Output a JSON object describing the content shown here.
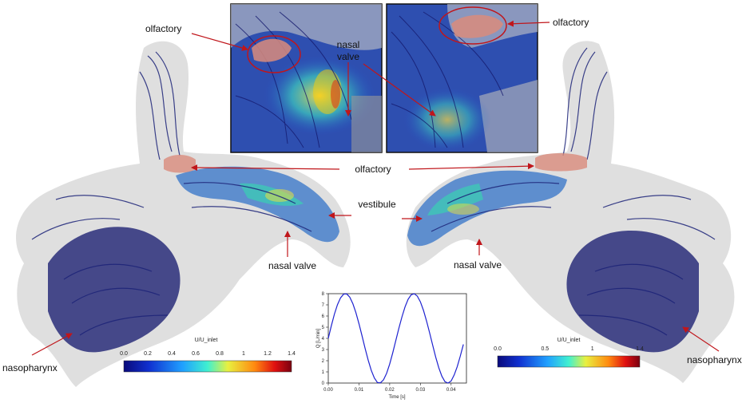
{
  "labels": {
    "olfactory_top_left": "olfactory",
    "olfactory_top_right": "olfactory",
    "olfactory_center": "olfactory",
    "nasal_valve_top_line1": "nasal",
    "nasal_valve_top_line2": "valve",
    "vestibule": "vestibule",
    "nasal_valve_left": "nasal valve",
    "nasal_valve_right": "nasal valve",
    "nasopharynx_left": "nasopharynx",
    "nasopharynx_right": "nasopharynx"
  },
  "colorbars": [
    {
      "title": "U/U_inlet",
      "ticks": [
        "0.0",
        "0.2",
        "0.4",
        "0.6",
        "0.8",
        "1",
        "1.2",
        "1.4"
      ]
    },
    {
      "title": "U/U_inlet",
      "ticks": [
        "0.0",
        "0.5",
        "1",
        "1.4"
      ]
    }
  ],
  "colors": {
    "arrow": "#c0161b",
    "streamline_low": "#1a1f8a",
    "streamline_high": "#ffd200",
    "olfactory_patch": "#d98b7c",
    "tissue": "#b8b8b8"
  },
  "chart_data": {
    "type": "line",
    "title": "",
    "xlabel": "Time [s]",
    "ylabel": "Q [L/min]",
    "xlim": [
      0.0,
      0.045
    ],
    "ylim": [
      0,
      8
    ],
    "xticks": [
      "0.00",
      "0.01",
      "0.02",
      "0.03",
      "0.04"
    ],
    "yticks": [
      "0",
      "1",
      "2",
      "3",
      "4",
      "5",
      "6",
      "7",
      "8"
    ],
    "series": [
      {
        "x": [
          0.0,
          0.001,
          0.002,
          0.003,
          0.004,
          0.005,
          0.006,
          0.007,
          0.008,
          0.009,
          0.01,
          0.011,
          0.012,
          0.013,
          0.014,
          0.015,
          0.016,
          0.017,
          0.018,
          0.019,
          0.02,
          0.021,
          0.022,
          0.023,
          0.024,
          0.025,
          0.026,
          0.027,
          0.028,
          0.029,
          0.03,
          0.031,
          0.032,
          0.033,
          0.034,
          0.035,
          0.036,
          0.037,
          0.038,
          0.039,
          0.04,
          0.041,
          0.042,
          0.043,
          0.044
        ],
        "y": [
          4.0,
          5.13,
          6.17,
          7.02,
          7.63,
          7.96,
          7.98,
          7.69,
          7.11,
          6.3,
          5.31,
          4.22,
          3.1,
          2.05,
          1.14,
          0.46,
          0.05,
          0.02,
          0.29,
          0.87,
          1.7,
          2.71,
          3.81,
          4.91,
          5.93,
          6.82,
          7.5,
          7.9,
          8.0,
          7.78,
          7.27,
          6.51,
          5.56,
          4.5,
          3.39,
          2.31,
          1.36,
          0.61,
          0.12,
          0.0,
          0.18,
          0.72,
          1.47,
          2.42,
          3.46
        ]
      }
    ]
  }
}
